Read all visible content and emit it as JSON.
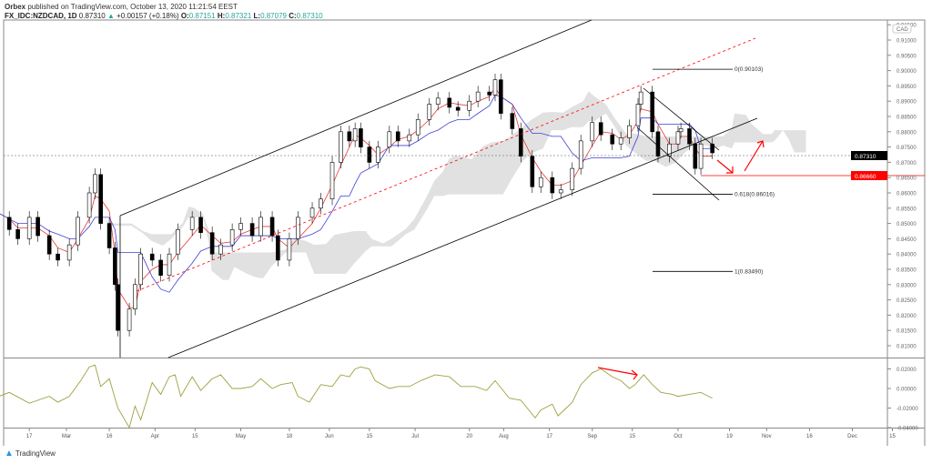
{
  "header": {
    "publisher": "Orbex",
    "published_text": "published on TradingView.com, October 13, 2020 11:21:54 EEST",
    "symbol": "FX_IDC:NZDCAD, 1D",
    "last": "0.87310",
    "change": "+0.00157 (+0.18%)",
    "o_label": "O:",
    "o": "0.87151",
    "h_label": "H:",
    "h": "0.87321",
    "l_label": "L:",
    "l": "0.87079",
    "c_label": "C:",
    "c": "0.87310"
  },
  "footer": {
    "brand": "TradingView"
  },
  "colors": {
    "tenkan": "#e53935",
    "kijun": "#3f3fd8",
    "cloud": "#d9d9d9",
    "oscillator": "#a0a040",
    "annotation": "#ff0000",
    "up": "#26a69a"
  },
  "chart_data": {
    "type": "candlestick",
    "currency": "CAD",
    "price_axis": {
      "range": [
        0.81,
        0.915
      ],
      "ticks": [
        "0.91500",
        "0.91000",
        "0.90500",
        "0.90000",
        "0.89500",
        "0.89000",
        "0.88500",
        "0.88000",
        "0.87500",
        "0.87000",
        "0.86500",
        "0.86000",
        "0.85500",
        "0.85000",
        "0.84500",
        "0.84000",
        "0.83500",
        "0.83000",
        "0.82500",
        "0.82000",
        "0.81500",
        "0.81000"
      ]
    },
    "price_labels": {
      "last": "0.87310",
      "target": "0.86660"
    },
    "time_axis": {
      "ticks": [
        "17",
        "Mar",
        "16",
        "Apr",
        "15",
        "May",
        "18",
        "Jun",
        "15",
        "Jul",
        "20",
        "Aug",
        "17",
        "Sep",
        "15",
        "Oct",
        "19",
        "Nov",
        "16",
        "Dec",
        "15"
      ],
      "tick_dates": [
        "2020-02-17",
        "2020-03-01",
        "2020-03-16",
        "2020-04-01",
        "2020-04-15",
        "2020-05-01",
        "2020-05-18",
        "2020-06-01",
        "2020-06-15",
        "2020-07-01",
        "2020-07-20",
        "2020-08-01",
        "2020-08-17",
        "2020-09-01",
        "2020-09-15",
        "2020-10-01",
        "2020-10-19",
        "2020-11-01",
        "2020-11-16",
        "2020-12-01",
        "2020-12-15"
      ]
    },
    "closes": [
      [
        "2020-02-03",
        0.855
      ],
      [
        "2020-02-06",
        0.852
      ],
      [
        "2020-02-10",
        0.848
      ],
      [
        "2020-02-13",
        0.845
      ],
      [
        "2020-02-17",
        0.852
      ],
      [
        "2020-02-20",
        0.846
      ],
      [
        "2020-02-24",
        0.84
      ],
      [
        "2020-02-27",
        0.838
      ],
      [
        "2020-03-02",
        0.843
      ],
      [
        "2020-03-05",
        0.852
      ],
      [
        "2020-03-09",
        0.86
      ],
      [
        "2020-03-11",
        0.866
      ],
      [
        "2020-03-13",
        0.85
      ],
      [
        "2020-03-16",
        0.842
      ],
      [
        "2020-03-18",
        0.83
      ],
      [
        "2020-03-19",
        0.815
      ],
      [
        "2020-03-23",
        0.822
      ],
      [
        "2020-03-25",
        0.83
      ],
      [
        "2020-03-27",
        0.84
      ],
      [
        "2020-03-31",
        0.838
      ],
      [
        "2020-04-03",
        0.833
      ],
      [
        "2020-04-06",
        0.84
      ],
      [
        "2020-04-09",
        0.848
      ],
      [
        "2020-04-14",
        0.852
      ],
      [
        "2020-04-17",
        0.847
      ],
      [
        "2020-04-21",
        0.84
      ],
      [
        "2020-04-24",
        0.843
      ],
      [
        "2020-04-28",
        0.848
      ],
      [
        "2020-05-01",
        0.85
      ],
      [
        "2020-05-05",
        0.846
      ],
      [
        "2020-05-08",
        0.852
      ],
      [
        "2020-05-12",
        0.846
      ],
      [
        "2020-05-14",
        0.838
      ],
      [
        "2020-05-18",
        0.845
      ],
      [
        "2020-05-21",
        0.852
      ],
      [
        "2020-05-26",
        0.855
      ],
      [
        "2020-05-29",
        0.858
      ],
      [
        "2020-06-02",
        0.87
      ],
      [
        "2020-06-05",
        0.88
      ],
      [
        "2020-06-08",
        0.877
      ],
      [
        "2020-06-10",
        0.881
      ],
      [
        "2020-06-12",
        0.875
      ],
      [
        "2020-06-15",
        0.87
      ],
      [
        "2020-06-18",
        0.875
      ],
      [
        "2020-06-22",
        0.88
      ],
      [
        "2020-06-25",
        0.877
      ],
      [
        "2020-06-29",
        0.879
      ],
      [
        "2020-07-02",
        0.884
      ],
      [
        "2020-07-06",
        0.889
      ],
      [
        "2020-07-09",
        0.891
      ],
      [
        "2020-07-13",
        0.888
      ],
      [
        "2020-07-16",
        0.887
      ],
      [
        "2020-07-20",
        0.89
      ],
      [
        "2020-07-23",
        0.893
      ],
      [
        "2020-07-27",
        0.892
      ],
      [
        "2020-07-29",
        0.897
      ],
      [
        "2020-07-31",
        0.886
      ],
      [
        "2020-08-04",
        0.881
      ],
      [
        "2020-08-07",
        0.872
      ],
      [
        "2020-08-11",
        0.862
      ],
      [
        "2020-08-14",
        0.865
      ],
      [
        "2020-08-18",
        0.86
      ],
      [
        "2020-08-21",
        0.861
      ],
      [
        "2020-08-25",
        0.868
      ],
      [
        "2020-08-28",
        0.877
      ],
      [
        "2020-09-01",
        0.883
      ],
      [
        "2020-09-04",
        0.879
      ],
      [
        "2020-09-08",
        0.876
      ],
      [
        "2020-09-11",
        0.878
      ],
      [
        "2020-09-14",
        0.882
      ],
      [
        "2020-09-17",
        0.889
      ],
      [
        "2020-09-18",
        0.893
      ],
      [
        "2020-09-22",
        0.88
      ],
      [
        "2020-09-24",
        0.872
      ],
      [
        "2020-09-28",
        0.876
      ],
      [
        "2020-10-01",
        0.88
      ],
      [
        "2020-10-02",
        0.881
      ],
      [
        "2020-10-05",
        0.876
      ],
      [
        "2020-10-07",
        0.868
      ],
      [
        "2020-10-09",
        0.876
      ],
      [
        "2020-10-13",
        0.8731
      ]
    ],
    "fibonacci": [
      {
        "label": "0(0.90103)",
        "price": 0.90103
      },
      {
        "label": "0.618(0.86016)",
        "price": 0.86016
      },
      {
        "label": "1(0.83490)",
        "price": 0.8349
      }
    ],
    "oscillator": {
      "range": [
        -0.045,
        0.027
      ],
      "ticks": [
        "0.02000",
        "0.00000",
        "-0.02000",
        "-0.04000"
      ],
      "values": [
        [
          "2020-02-03",
          -0.012
        ],
        [
          "2020-02-10",
          -0.004
        ],
        [
          "2020-02-17",
          -0.015
        ],
        [
          "2020-02-24",
          -0.008
        ],
        [
          "2020-02-27",
          -0.014
        ],
        [
          "2020-03-02",
          -0.008
        ],
        [
          "2020-03-06",
          0.008
        ],
        [
          "2020-03-09",
          0.022
        ],
        [
          "2020-03-11",
          0.024
        ],
        [
          "2020-03-13",
          0.002
        ],
        [
          "2020-03-16",
          0.01
        ],
        [
          "2020-03-19",
          -0.02
        ],
        [
          "2020-03-23",
          -0.04
        ],
        [
          "2020-03-25",
          -0.018
        ],
        [
          "2020-03-27",
          -0.032
        ],
        [
          "2020-03-31",
          0.006
        ],
        [
          "2020-04-03",
          -0.006
        ],
        [
          "2020-04-06",
          0.012
        ],
        [
          "2020-04-08",
          0.014
        ],
        [
          "2020-04-10",
          -0.008
        ],
        [
          "2020-04-14",
          0.012
        ],
        [
          "2020-04-17",
          -0.002
        ],
        [
          "2020-04-21",
          0.01
        ],
        [
          "2020-04-24",
          0.014
        ],
        [
          "2020-04-28",
          0.0
        ],
        [
          "2020-05-01",
          0.0
        ],
        [
          "2020-05-05",
          0.002
        ],
        [
          "2020-05-08",
          0.01
        ],
        [
          "2020-05-12",
          0.0
        ],
        [
          "2020-05-15",
          0.004
        ],
        [
          "2020-05-19",
          0.006
        ],
        [
          "2020-05-21",
          -0.008
        ],
        [
          "2020-05-25",
          -0.014
        ],
        [
          "2020-05-29",
          0.004
        ],
        [
          "2020-06-02",
          0.002
        ],
        [
          "2020-06-05",
          0.014
        ],
        [
          "2020-06-08",
          0.012
        ],
        [
          "2020-06-10",
          0.02
        ],
        [
          "2020-06-12",
          0.022
        ],
        [
          "2020-06-15",
          0.02
        ],
        [
          "2020-06-17",
          0.008
        ],
        [
          "2020-06-22",
          0.0
        ],
        [
          "2020-06-25",
          0.002
        ],
        [
          "2020-06-29",
          0.002
        ],
        [
          "2020-07-03",
          0.008
        ],
        [
          "2020-07-08",
          0.014
        ],
        [
          "2020-07-13",
          0.012
        ],
        [
          "2020-07-17",
          0.002
        ],
        [
          "2020-07-22",
          0.002
        ],
        [
          "2020-07-26",
          -0.002
        ],
        [
          "2020-07-29",
          0.008
        ],
        [
          "2020-08-03",
          -0.01
        ],
        [
          "2020-08-07",
          -0.012
        ],
        [
          "2020-08-12",
          -0.03
        ],
        [
          "2020-08-14",
          -0.022
        ],
        [
          "2020-08-18",
          -0.016
        ],
        [
          "2020-08-20",
          -0.028
        ],
        [
          "2020-08-25",
          -0.014
        ],
        [
          "2020-08-28",
          0.004
        ],
        [
          "2020-09-01",
          0.016
        ],
        [
          "2020-09-04",
          0.02
        ],
        [
          "2020-09-08",
          0.012
        ],
        [
          "2020-09-11",
          0.008
        ],
        [
          "2020-09-14",
          0.0
        ],
        [
          "2020-09-16",
          0.004
        ],
        [
          "2020-09-19",
          0.014
        ],
        [
          "2020-09-22",
          0.004
        ],
        [
          "2020-09-25",
          -0.004
        ],
        [
          "2020-09-29",
          -0.006
        ],
        [
          "2020-10-01",
          -0.008
        ],
        [
          "2020-10-05",
          -0.006
        ],
        [
          "2020-10-09",
          -0.004
        ],
        [
          "2020-10-13",
          -0.01
        ]
      ]
    }
  }
}
